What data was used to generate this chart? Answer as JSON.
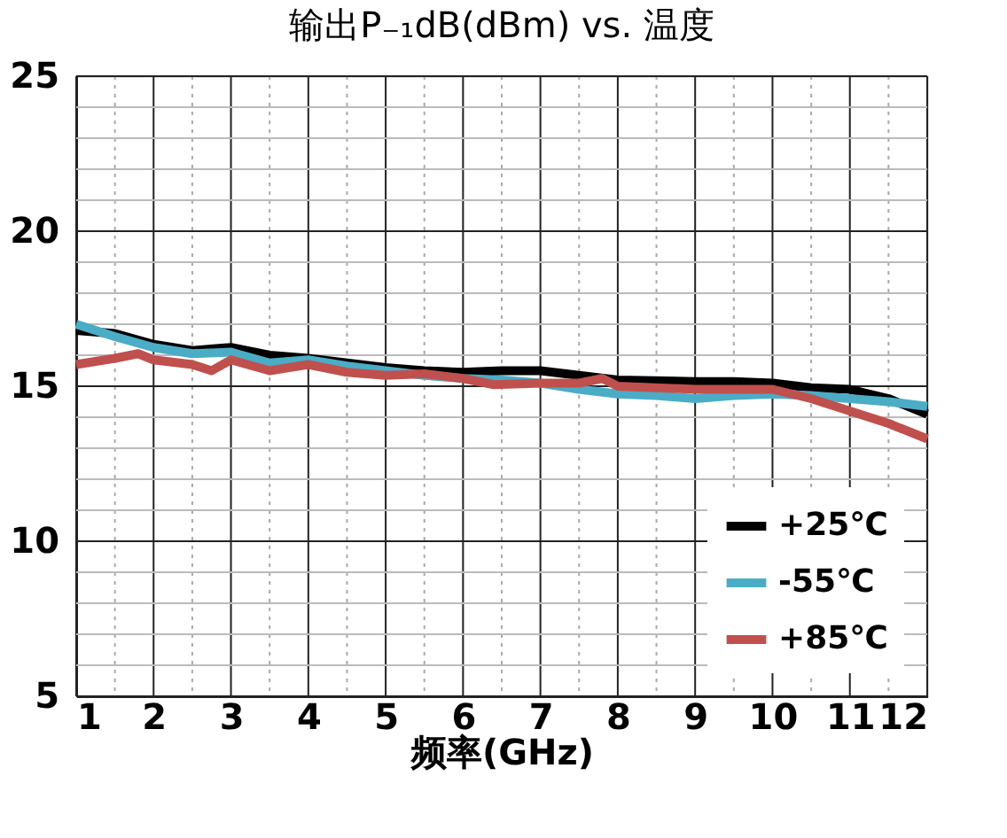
{
  "chart_data": {
    "type": "line",
    "title": "输出P₋₁dB(dBm)  vs. 温度",
    "xlabel": "频率(GHz)",
    "xlim": [
      1,
      12
    ],
    "ylim": [
      5,
      25
    ],
    "xticks": [
      1,
      {
        "value": 1.5,
        "label": null
      },
      2,
      {
        "value": 2.5,
        "label": null
      },
      3,
      {
        "value": 3.5,
        "label": null
      },
      4,
      {
        "value": 4.5,
        "label": null
      },
      5,
      {
        "value": 5.5,
        "label": null
      },
      6,
      {
        "value": 6.5,
        "label": null
      },
      7,
      {
        "value": 7.5,
        "label": null
      },
      8,
      {
        "value": 8.5,
        "label": null
      },
      9,
      {
        "value": 9.5,
        "label": null
      },
      10,
      {
        "value": 10.5,
        "label": null
      },
      11,
      {
        "value": 11.5,
        "label": null
      },
      12
    ],
    "yticks": [
      5,
      {
        "value": 6,
        "label": null
      },
      {
        "value": 7,
        "label": null
      },
      {
        "value": 8,
        "label": null
      },
      {
        "value": 9,
        "label": null
      },
      10,
      {
        "value": 11,
        "label": null
      },
      {
        "value": 12,
        "label": null
      },
      {
        "value": 13,
        "label": null
      },
      {
        "value": 14,
        "label": null
      },
      15,
      {
        "value": 16,
        "label": null
      },
      {
        "value": 17,
        "label": null
      },
      {
        "value": 18,
        "label": null
      },
      {
        "value": 19,
        "label": null
      },
      20,
      {
        "value": 21,
        "label": null
      },
      {
        "value": 22,
        "label": null
      },
      {
        "value": 23,
        "label": null
      },
      {
        "value": 24,
        "label": null
      },
      25
    ],
    "grid": true,
    "legend": "bottom right",
    "line_style": "solid",
    "marker": "none",
    "series": [
      {
        "name": "+25℃",
        "color": "#000000",
        "x": [
          1,
          1.5,
          2,
          2.5,
          3,
          3.5,
          4,
          4.5,
          5,
          5.5,
          6,
          6.5,
          7,
          7.5,
          8,
          9,
          9.5,
          10,
          10.5,
          11,
          11.5,
          12
        ],
        "values": [
          16.8,
          16.7,
          16.35,
          16.15,
          16.25,
          16.0,
          15.9,
          15.75,
          15.6,
          15.5,
          15.45,
          15.5,
          15.5,
          15.35,
          15.2,
          15.15,
          15.15,
          15.1,
          14.95,
          14.9,
          14.6,
          14.1
        ]
      },
      {
        "name": "-55℃",
        "color": "#4bacc6",
        "x": [
          1,
          1.5,
          2,
          2.5,
          3,
          3.5,
          4,
          4.5,
          5,
          5.5,
          6,
          6.5,
          7,
          7.5,
          8,
          8.5,
          9,
          9.5,
          10,
          10.5,
          11,
          11.5,
          12
        ],
        "values": [
          17.0,
          16.6,
          16.25,
          16.05,
          16.1,
          15.75,
          15.85,
          15.65,
          15.5,
          15.35,
          15.25,
          15.2,
          15.1,
          14.9,
          14.75,
          14.7,
          14.6,
          14.7,
          14.75,
          14.7,
          14.6,
          14.5,
          14.35
        ]
      },
      {
        "name": "+85℃",
        "color": "#c0504d",
        "x": [
          1,
          1.5,
          1.8,
          2,
          2.5,
          2.75,
          3,
          3.5,
          4,
          4.5,
          5,
          5.5,
          6,
          6.4,
          7,
          7.5,
          7.8,
          8,
          9,
          10,
          10.5,
          11,
          11.5,
          12
        ],
        "values": [
          15.7,
          15.9,
          16.05,
          15.85,
          15.7,
          15.5,
          15.85,
          15.5,
          15.7,
          15.45,
          15.35,
          15.4,
          15.25,
          15.05,
          15.1,
          15.1,
          15.25,
          15.0,
          14.9,
          14.9,
          14.6,
          14.2,
          13.8,
          13.3
        ]
      }
    ]
  }
}
